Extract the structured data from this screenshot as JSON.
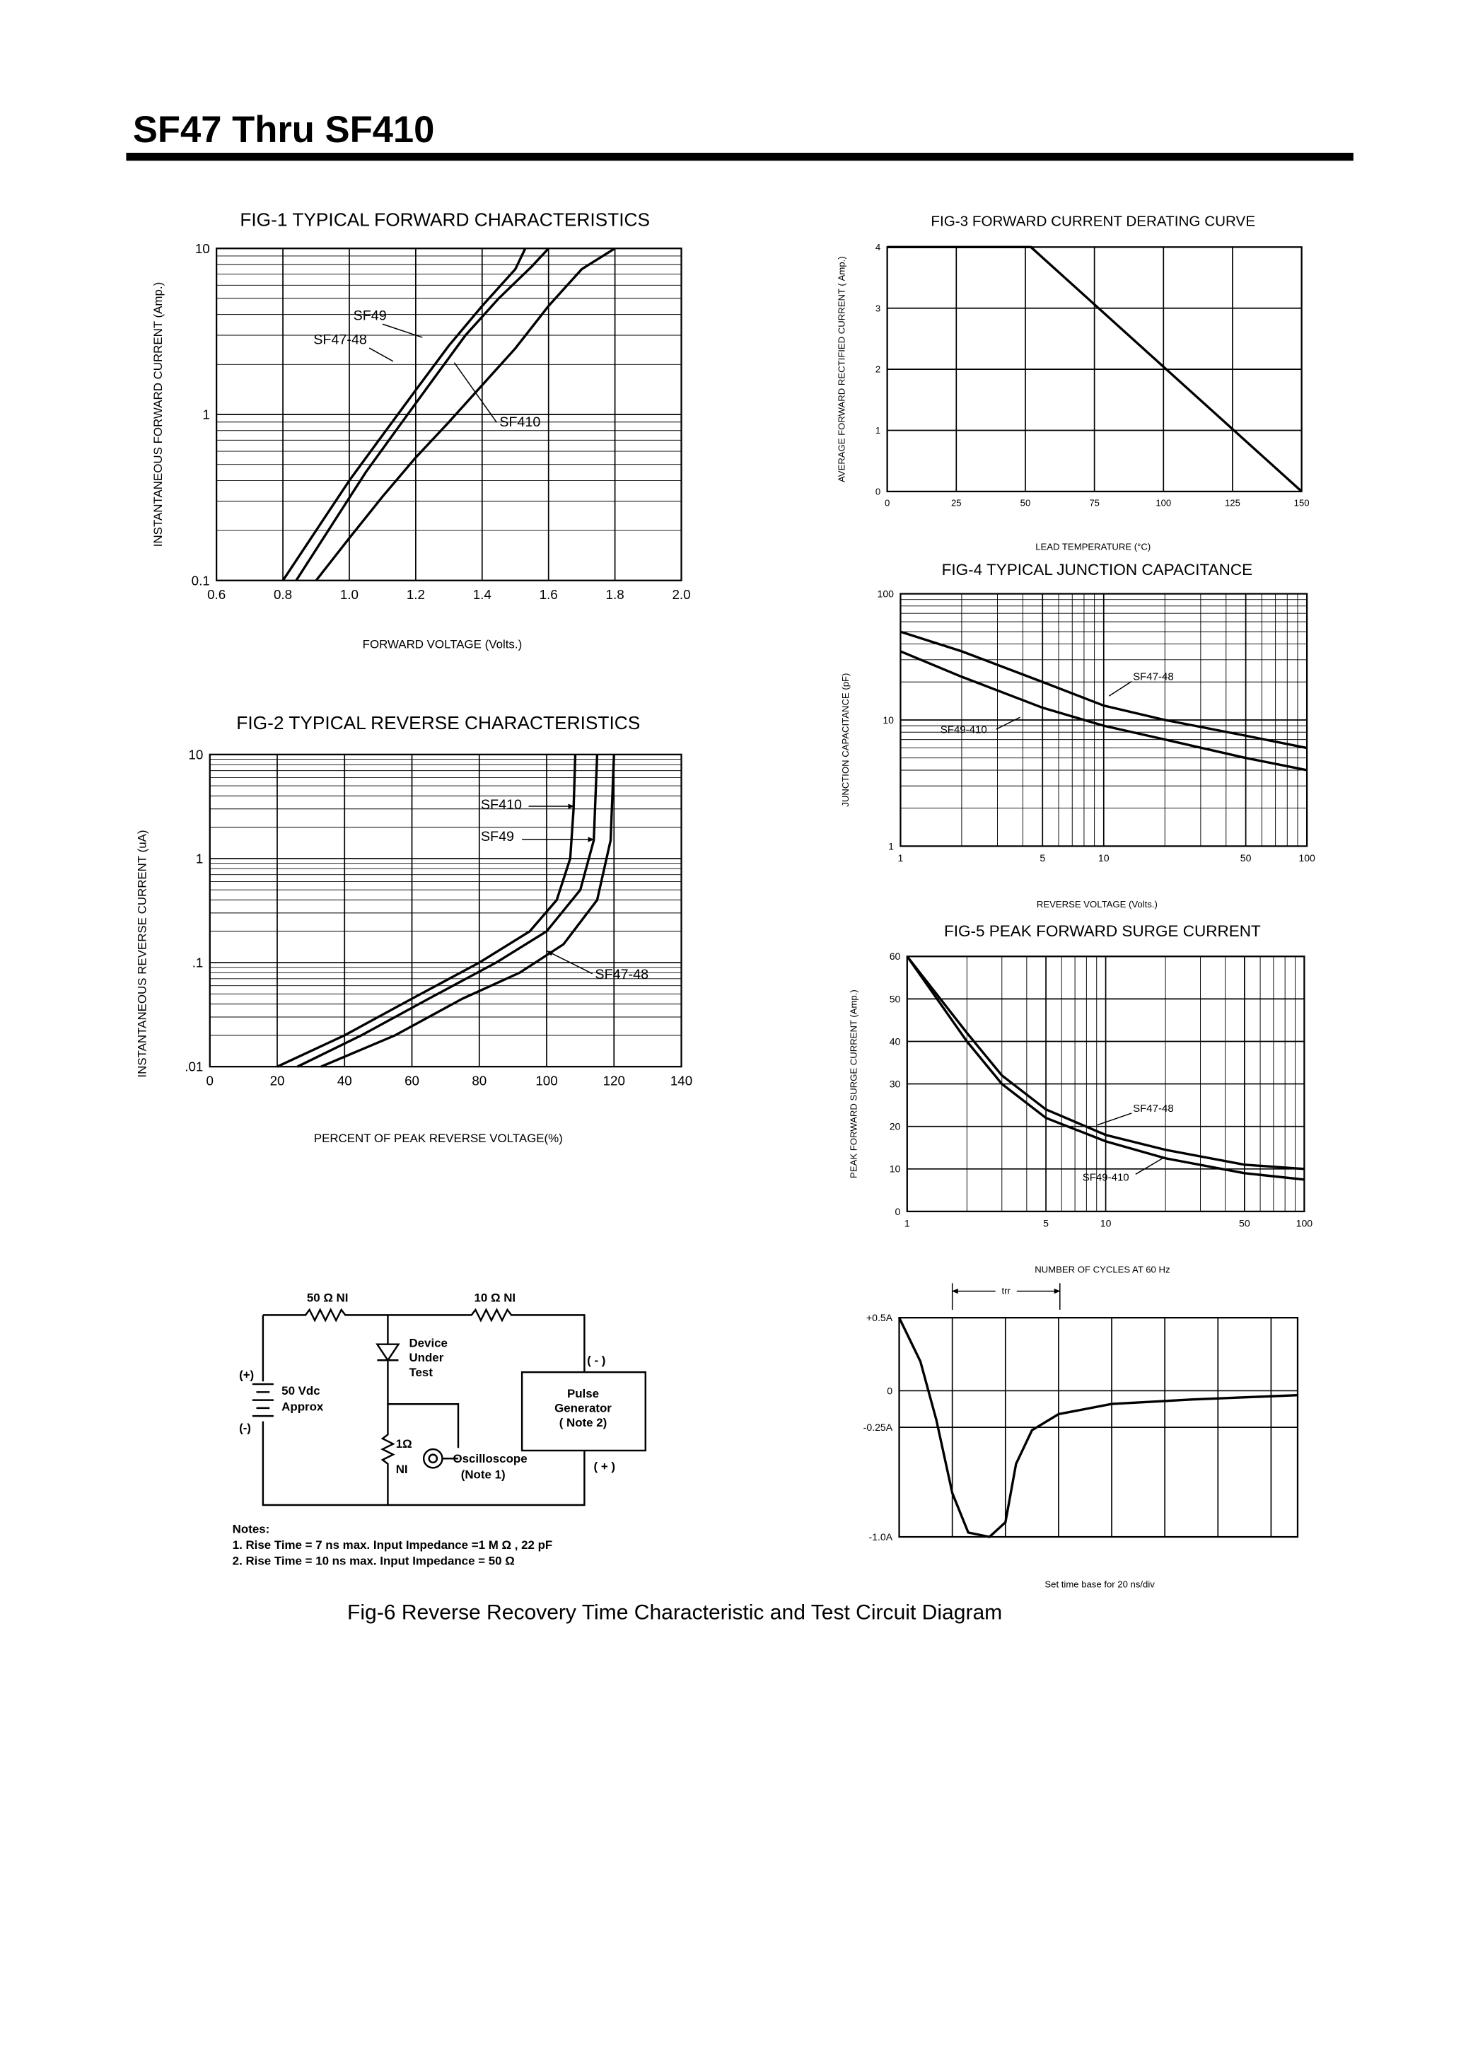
{
  "header": {
    "title": "SF47 Thru SF410"
  },
  "chart_data": [
    {
      "type": "line",
      "title": "FIG-1 TYPICAL FORWARD CHARACTERISTICS",
      "xlabel": "FORWARD VOLTAGE (Volts.)",
      "ylabel": "INSTANTANEOUS FORWARD CURRENT (Amp.)",
      "xlim": [
        0.6,
        2.0
      ],
      "ylim": [
        0.1,
        10
      ],
      "xlog": false,
      "ylog": true,
      "grid": true,
      "xticks": [
        0.6,
        0.8,
        {
          "value": 1,
          "label": "1.0"
        },
        1.2,
        1.4,
        1.6,
        1.8,
        {
          "value": 2,
          "label": "2.0"
        }
      ],
      "yticks": [
        0.1,
        1,
        10
      ],
      "series": [
        {
          "name": "SF49",
          "color": "#000000",
          "x": [
            0.84,
            0.95,
            1.05,
            1.15,
            1.25,
            1.35,
            1.45,
            1.55,
            1.6
          ],
          "values": [
            0.1,
            0.22,
            0.45,
            0.85,
            1.6,
            3.0,
            5.0,
            7.8,
            10
          ]
        },
        {
          "name": "SF47-48",
          "color": "#000000",
          "x": [
            0.8,
            0.9,
            1.0,
            1.1,
            1.2,
            1.3,
            1.4,
            1.5,
            1.53
          ],
          "values": [
            0.1,
            0.2,
            0.4,
            0.75,
            1.4,
            2.6,
            4.5,
            7.5,
            10
          ]
        },
        {
          "name": "SF410",
          "color": "#000000",
          "x": [
            0.9,
            1.0,
            1.1,
            1.2,
            1.3,
            1.4,
            1.5,
            1.6,
            1.7,
            1.8
          ],
          "values": [
            0.1,
            0.18,
            0.32,
            0.55,
            0.9,
            1.5,
            2.5,
            4.5,
            7.5,
            10
          ]
        }
      ]
    },
    {
      "type": "line",
      "title": "FIG-2 TYPICAL REVERSE CHARACTERISTICS",
      "xlabel": "PERCENT OF PEAK REVERSE VOLTAGE(%)",
      "ylabel": "INSTANTANEOUS REVERSE CURRENT (uA)",
      "xlim": [
        0,
        140
      ],
      "ylim": [
        0.01,
        10
      ],
      "xlog": false,
      "ylog": true,
      "grid": true,
      "xticks": [
        0,
        20,
        40,
        60,
        80,
        100,
        120,
        140
      ],
      "yticks": [
        {
          "value": 0.01,
          "label": ".01"
        },
        {
          "value": 0.1,
          "label": ".1"
        },
        1,
        10
      ],
      "series": [
        {
          "name": "SF410",
          "color": "#000000",
          "x": [
            20,
            40,
            60,
            80,
            95,
            103,
            107,
            108,
            108.5
          ],
          "values": [
            0.01,
            0.02,
            0.045,
            0.1,
            0.2,
            0.4,
            1,
            3,
            10
          ]
        },
        {
          "name": "SF49",
          "color": "#000000",
          "x": [
            26,
            45,
            65,
            85,
            100,
            110,
            114,
            115
          ],
          "values": [
            0.01,
            0.02,
            0.045,
            0.1,
            0.2,
            0.5,
            1.5,
            10
          ]
        },
        {
          "name": "SF47-48",
          "color": "#000000",
          "x": [
            33,
            55,
            75,
            92,
            105,
            115,
            119,
            120
          ],
          "values": [
            0.01,
            0.02,
            0.045,
            0.08,
            0.15,
            0.4,
            1.5,
            10
          ]
        }
      ]
    },
    {
      "type": "line",
      "title": "FIG-3 FORWARD CURRENT DERATING CURVE",
      "xlabel": "LEAD TEMPERATURE (°C)",
      "ylabel": "AVERAGE FORWARD RECTIFIED CURRENT ( Amp.)",
      "xlim": [
        0,
        150
      ],
      "ylim": [
        0,
        4
      ],
      "xlog": false,
      "ylog": false,
      "grid": true,
      "xticks": [
        0,
        25,
        50,
        75,
        100,
        125,
        150
      ],
      "yticks": [
        0,
        1,
        2,
        3,
        4
      ],
      "series": [
        {
          "color": "#000000",
          "x": [
            0,
            52,
            150
          ],
          "values": [
            4,
            4,
            0
          ]
        }
      ]
    },
    {
      "type": "line",
      "title": "FIG-4 TYPICAL JUNCTION CAPACITANCE",
      "xlabel": "REVERSE VOLTAGE (Volts.)",
      "ylabel": "JUNCTION CAPACITANCE (pF)",
      "xlim": [
        1,
        100
      ],
      "ylim": [
        1,
        100
      ],
      "xlog": true,
      "ylog": true,
      "grid": true,
      "xticks": [
        1,
        5,
        10,
        50,
        100
      ],
      "yticks": [
        1,
        10,
        100
      ],
      "series": [
        {
          "name": "SF47-48",
          "color": "#000000",
          "x": [
            1,
            2,
            5,
            10,
            20,
            50,
            100
          ],
          "values": [
            50,
            35,
            20,
            13,
            10,
            7.5,
            6
          ]
        },
        {
          "name": "SF49-410",
          "color": "#000000",
          "x": [
            1,
            2,
            5,
            10,
            20,
            50,
            100
          ],
          "values": [
            35,
            22,
            12.5,
            9,
            7,
            5,
            4
          ]
        }
      ]
    },
    {
      "type": "line",
      "title": "FIG-5 PEAK FORWARD SURGE CURRENT",
      "xlabel": "NUMBER OF CYCLES AT 60 Hz",
      "ylabel": "PEAK FORWARD SURGE CURRENT (Amp.)",
      "xlim": [
        1,
        100
      ],
      "ylim": [
        0,
        60
      ],
      "xlog": true,
      "ylog": false,
      "grid": true,
      "xticks": [
        1,
        5,
        10,
        50,
        100
      ],
      "yticks": [
        0,
        10,
        20,
        30,
        40,
        50,
        60
      ],
      "series": [
        {
          "name": "SF47-48",
          "color": "#000000",
          "x": [
            1,
            2,
            3,
            5,
            10,
            20,
            50,
            100
          ],
          "values": [
            60,
            42,
            32,
            24,
            18,
            14.5,
            11,
            10
          ]
        },
        {
          "name": "SF49-410",
          "color": "#000000",
          "x": [
            1,
            2,
            3,
            5,
            10,
            20,
            50,
            100
          ],
          "values": [
            60,
            40,
            30,
            22,
            16.5,
            12.5,
            9,
            7.5
          ]
        }
      ]
    },
    {
      "type": "line",
      "annotation": "Set time base for 20 ns/div",
      "interval_label": "trr",
      "xlim": [
        0,
        150
      ],
      "ylim": [
        -1,
        0.5
      ],
      "xlog": false,
      "ylog": false,
      "grid": true,
      "xtick_labels": false,
      "xticks": [
        0,
        20,
        40,
        60,
        80,
        100,
        120,
        140
      ],
      "yticks": [
        {
          "value": 0.5,
          "label": "+0.5A"
        },
        0,
        {
          "value": -0.25,
          "label": "-0.25A"
        },
        {
          "value": -1,
          "label": "-1.0A"
        }
      ],
      "series": [
        {
          "color": "#000000",
          "x": [
            0,
            8,
            14,
            20,
            26,
            34,
            40,
            44,
            50,
            60,
            80,
            110,
            150
          ],
          "values": [
            0.5,
            0.2,
            -0.2,
            -0.7,
            -0.97,
            -1.0,
            -0.9,
            -0.5,
            -0.27,
            -0.16,
            -0.09,
            -0.06,
            -0.03
          ]
        }
      ]
    }
  ],
  "circuit": {
    "r1": "50 Ω  NI",
    "r2": "10 Ω  NI",
    "dut": [
      "Device",
      "Under",
      "Test"
    ],
    "gen_minus": "( - )",
    "gen_plus": "( + )",
    "bat_plus": "(+)",
    "bat_minus": "(-)",
    "supply": [
      "50 Vdc",
      "Approx"
    ],
    "generator": [
      "Pulse",
      "Generator",
      "( Note 2)"
    ],
    "r3": [
      "1Ω",
      "NI"
    ],
    "scope": [
      "Oscilloscope",
      "(Note 1)"
    ],
    "notes": [
      "Notes:",
      "1. Rise Time = 7 ns max. Input Impedance =1 M Ω , 22 pF",
      "2. Rise Time = 10 ns max. Input Impedance = 50 Ω"
    ]
  },
  "caption": "Fig-6 Reverse Recovery Time Characteristic and Test Circuit Diagram"
}
